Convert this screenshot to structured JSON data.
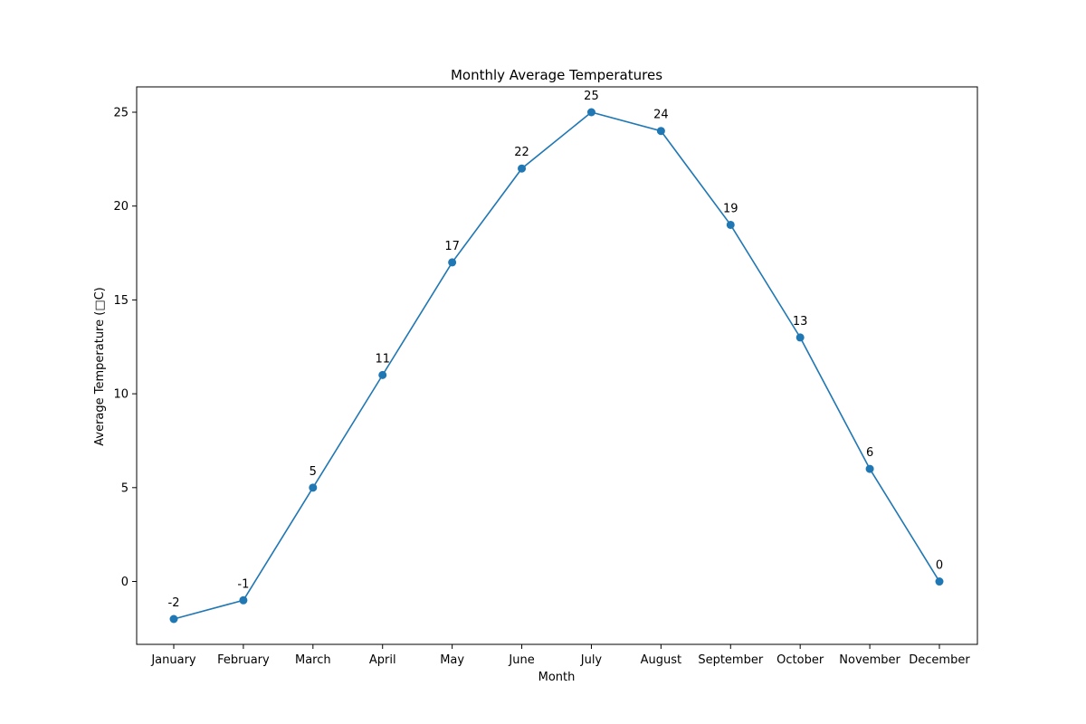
{
  "chart_data": {
    "type": "line",
    "title": "Monthly Average Temperatures",
    "xlabel": "Month",
    "ylabel": "Average Temperature (□C)",
    "categories": [
      "January",
      "February",
      "March",
      "April",
      "May",
      "June",
      "July",
      "August",
      "September",
      "October",
      "November",
      "December"
    ],
    "series": [
      {
        "values": [
          -2,
          -1,
          5,
          11,
          17,
          22,
          25,
          24,
          19,
          13,
          6,
          0
        ],
        "color": "#1f77b4",
        "marker": "circle"
      }
    ],
    "ylim": [
      -3.35,
      26.35
    ],
    "yticks": [
      0,
      5,
      10,
      15,
      20,
      25
    ],
    "grid": false,
    "legend": "none",
    "data_labels": true
  }
}
